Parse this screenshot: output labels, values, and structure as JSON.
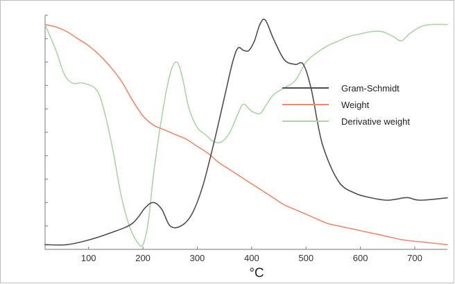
{
  "chart_data": {
    "type": "line",
    "title": "",
    "xlabel": "°C",
    "ylabel": "",
    "xlim": [
      20,
      760
    ],
    "ylim": [
      0,
      100
    ],
    "x_ticks": [
      100,
      200,
      300,
      400,
      500,
      600,
      700
    ],
    "y_ticks_count": 11,
    "y_tick_labels_shown": false,
    "grid": false,
    "legend_position": "right",
    "series": [
      {
        "name": "Gram-Schmidt",
        "color": "#4d4d4d",
        "x": [
          20,
          60,
          100,
          140,
          180,
          205,
          220,
          235,
          250,
          270,
          290,
          310,
          330,
          350,
          365,
          375,
          385,
          395,
          405,
          415,
          425,
          440,
          460,
          480,
          495,
          510,
          530,
          560,
          590,
          620,
          650,
          680,
          690,
          710,
          760
        ],
        "y": [
          2,
          2,
          4,
          7,
          11,
          18,
          20,
          17,
          10,
          10,
          15,
          27,
          45,
          65,
          80,
          86,
          85,
          85,
          89,
          96,
          98,
          90,
          81,
          79,
          79,
          68,
          45,
          29,
          24,
          22,
          21,
          22,
          22,
          21,
          22
        ]
      },
      {
        "name": "Weight",
        "color": "#f0896b",
        "x": [
          20,
          40,
          60,
          80,
          100,
          120,
          140,
          160,
          180,
          200,
          220,
          240,
          260,
          280,
          300,
          320,
          340,
          360,
          380,
          400,
          420,
          440,
          460,
          480,
          500,
          520,
          540,
          560,
          580,
          600,
          640,
          680,
          720,
          760
        ],
        "y": [
          96,
          95,
          93,
          90,
          87,
          83,
          78,
          72,
          64,
          57,
          53,
          51,
          49,
          47,
          44,
          41,
          37,
          34,
          31,
          28,
          25,
          22,
          19,
          17,
          15,
          13,
          11,
          10,
          9,
          8,
          6,
          4,
          3,
          2
        ]
      },
      {
        "name": "Derivative weight",
        "color": "#a9d6a4",
        "x": [
          20,
          40,
          55,
          70,
          90,
          115,
          130,
          145,
          160,
          175,
          190,
          200,
          210,
          220,
          235,
          250,
          262,
          272,
          285,
          300,
          315,
          330,
          345,
          360,
          375,
          385,
          400,
          415,
          425,
          440,
          460,
          480,
          500,
          520,
          540,
          560,
          580,
          600,
          620,
          640,
          660,
          675,
          690,
          710,
          730,
          760
        ],
        "y": [
          96,
          85,
          75,
          71,
          71,
          68,
          58,
          42,
          23,
          10,
          3,
          2,
          12,
          33,
          57,
          75,
          80,
          74,
          60,
          52,
          49,
          46,
          46,
          50,
          58,
          62,
          59,
          58,
          61,
          66,
          69,
          72,
          80,
          84,
          87,
          89,
          91,
          92,
          93,
          93,
          91,
          89,
          92,
          95,
          96,
          96
        ]
      }
    ]
  }
}
